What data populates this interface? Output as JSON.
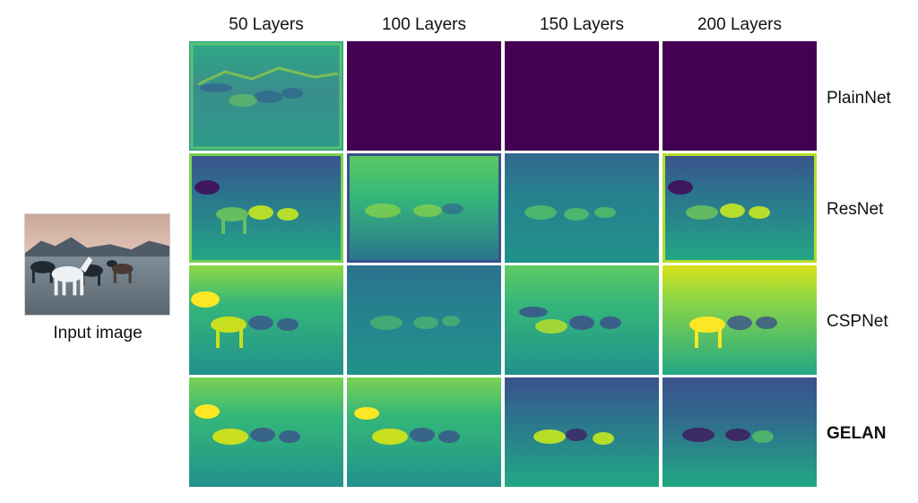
{
  "input": {
    "caption": "Input image"
  },
  "columns": [
    "50 Layers",
    "100 Layers",
    "150 Layers",
    "200 Layers"
  ],
  "rows": [
    {
      "label": "PlainNet",
      "bold": false
    },
    {
      "label": "ResNet",
      "bold": false
    },
    {
      "label": "CSPNet",
      "bold": false
    },
    {
      "label": "GELAN",
      "bold": true
    }
  ],
  "colors": {
    "dead_feature": "#440154",
    "low": "#2a6f8e",
    "mid": "#22a884",
    "high": "#b5de2b",
    "peak": "#fde725"
  }
}
